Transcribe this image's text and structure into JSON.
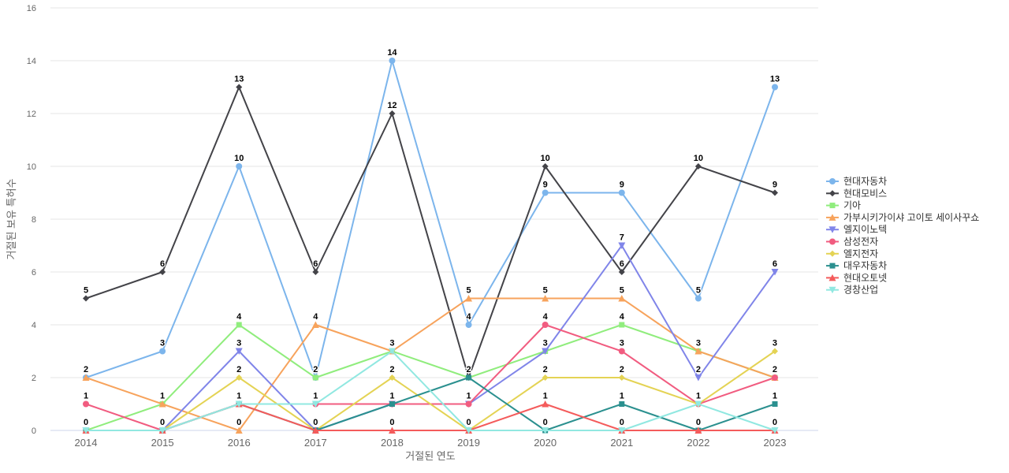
{
  "chart_data": {
    "type": "line",
    "title": "",
    "xlabel": "거절된 연도",
    "ylabel": "거절된 보유 특허수",
    "x": [
      2014,
      2015,
      2016,
      2017,
      2018,
      2019,
      2020,
      2021,
      2022,
      2023
    ],
    "ylim": [
      0,
      16
    ],
    "ytick_step": 2,
    "grid": true,
    "legend_position": "right",
    "data_labels": true,
    "series": [
      {
        "name": "현대자동차",
        "color": "#7cb5ec",
        "marker": "circle",
        "values": [
          2,
          3,
          10,
          2,
          14,
          4,
          9,
          9,
          5,
          13
        ]
      },
      {
        "name": "현대모비스",
        "color": "#434348",
        "marker": "diamond",
        "values": [
          5,
          6,
          13,
          6,
          12,
          2,
          10,
          6,
          10,
          9
        ]
      },
      {
        "name": "기아",
        "color": "#90ed7d",
        "marker": "square",
        "values": [
          0,
          1,
          4,
          2,
          3,
          2,
          3,
          4,
          3,
          2
        ]
      },
      {
        "name": "가부시키가이샤 고이토 세이사꾸쇼",
        "color": "#f7a35c",
        "marker": "triangle",
        "values": [
          2,
          1,
          0,
          4,
          3,
          5,
          5,
          5,
          3,
          2
        ]
      },
      {
        "name": "엘지이노텍",
        "color": "#8085e9",
        "marker": "triangle-down",
        "values": [
          0,
          0,
          3,
          0,
          1,
          1,
          3,
          7,
          2,
          6
        ]
      },
      {
        "name": "삼성전자",
        "color": "#f15c80",
        "marker": "circle",
        "values": [
          1,
          0,
          1,
          1,
          1,
          1,
          4,
          3,
          1,
          2
        ]
      },
      {
        "name": "엘지전자",
        "color": "#e4d354",
        "marker": "diamond",
        "values": [
          0,
          0,
          2,
          0,
          2,
          0,
          2,
          2,
          1,
          3
        ]
      },
      {
        "name": "대우자동차",
        "color": "#2b908f",
        "marker": "square",
        "values": [
          0,
          0,
          1,
          0,
          1,
          2,
          0,
          1,
          0,
          1
        ]
      },
      {
        "name": "현대오토넷",
        "color": "#f45b5b",
        "marker": "triangle",
        "values": [
          0,
          0,
          1,
          0,
          0,
          0,
          1,
          0,
          0,
          0
        ]
      },
      {
        "name": "경창산업",
        "color": "#91e8e1",
        "marker": "triangle-down",
        "values": [
          0,
          0,
          1,
          1,
          3,
          0,
          0,
          0,
          1,
          0
        ]
      }
    ]
  },
  "axes": {
    "x_ticks": [
      "2014",
      "2015",
      "2016",
      "2017",
      "2018",
      "2019",
      "2020",
      "2021",
      "2022",
      "2023"
    ],
    "y_ticks": [
      "0",
      "2",
      "4",
      "6",
      "8",
      "10",
      "12",
      "14",
      "16"
    ],
    "grid_color": "#e6e6e6",
    "axis_line_color": "#ccd6eb",
    "tick_label_color": "#666666",
    "legend_text_color": "#333333"
  }
}
